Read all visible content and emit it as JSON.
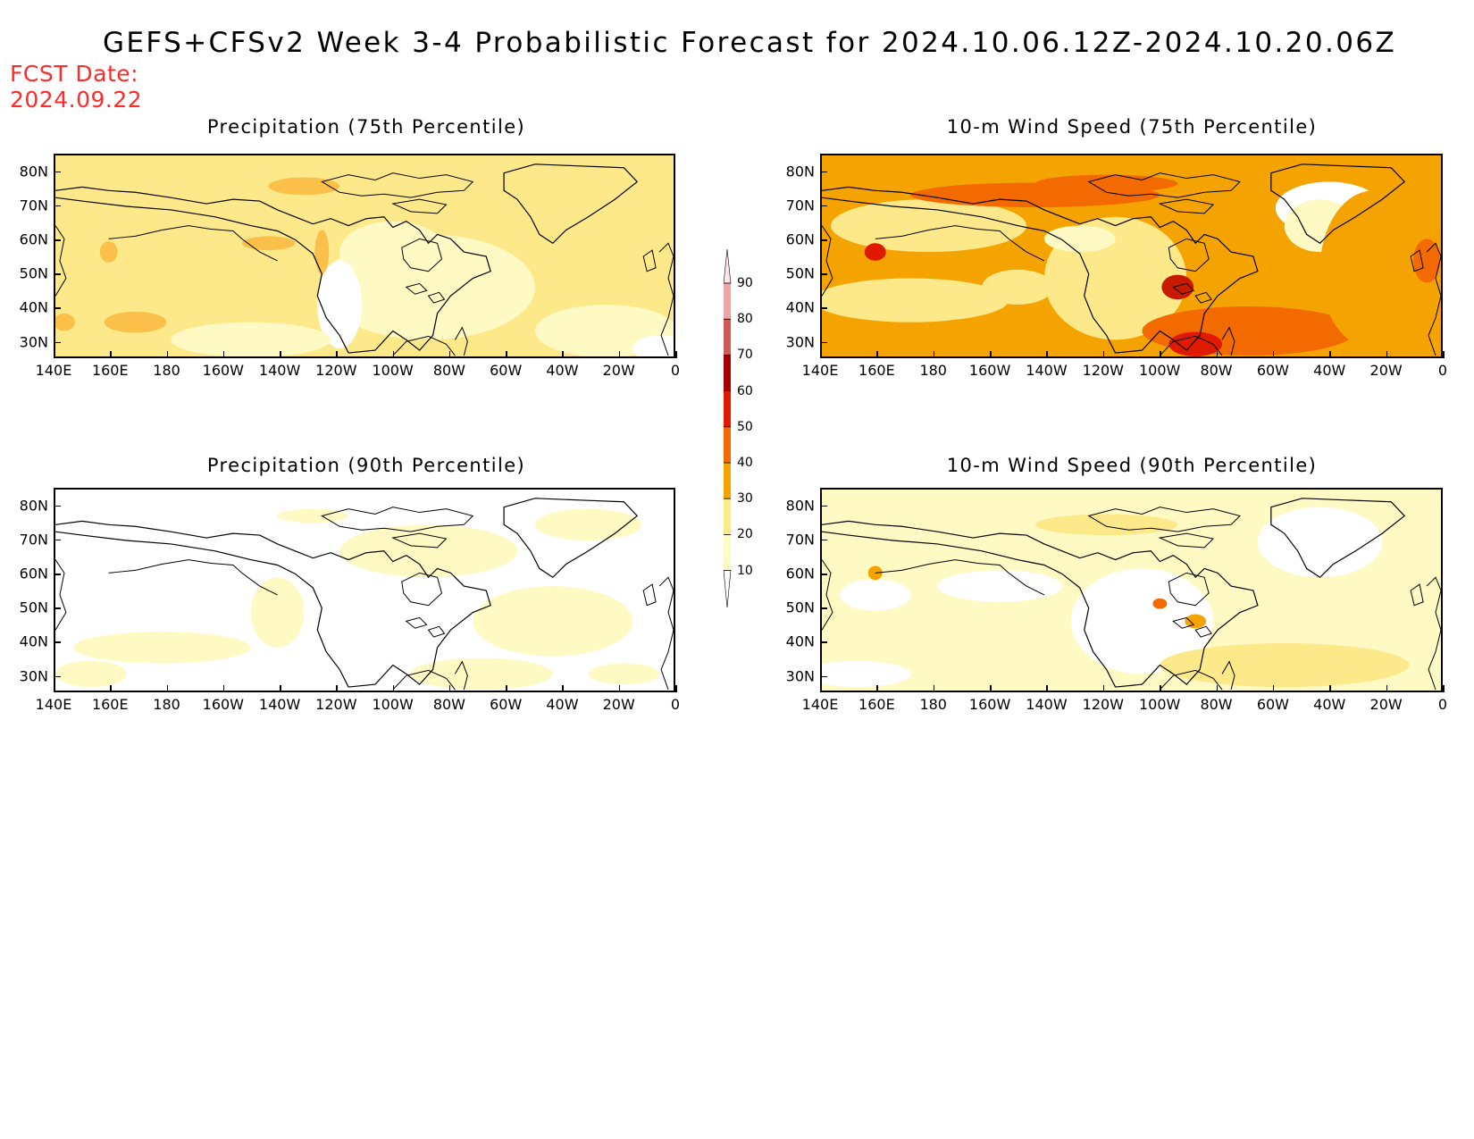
{
  "title": "GEFS+CFSv2 Week 3-4 Probabilistic Forecast for 2024.10.06.12Z-2024.10.20.06Z",
  "fcst_date": {
    "label": "FCST Date:",
    "value": "2024.09.22"
  },
  "panels": [
    {
      "title": "Precipitation (75th Percentile)",
      "level": "p75"
    },
    {
      "title": "10-m Wind Speed (75th Percentile)",
      "level": "w75"
    },
    {
      "title": "Precipitation (90th Percentile)",
      "level": "p90"
    },
    {
      "title": "10-m Wind Speed (90th Percentile)",
      "level": "w90"
    }
  ],
  "lat_labels": [
    "80N",
    "70N",
    "60N",
    "50N",
    "40N",
    "30N"
  ],
  "lon_labels": [
    "140E",
    "160E",
    "180",
    "160W",
    "140W",
    "120W",
    "100W",
    "80W",
    "60W",
    "40W",
    "20W",
    "0"
  ],
  "colorbar": {
    "levels": [
      "10",
      "20",
      "30",
      "40",
      "50",
      "60",
      "70",
      "80",
      "90"
    ],
    "colors": [
      "#fff9c4",
      "#fde98a",
      "#f5a300",
      "#f26a00",
      "#e01a00",
      "#a60000",
      "#d05a5a",
      "#f0a3a8",
      "#fde6e8"
    ]
  }
}
